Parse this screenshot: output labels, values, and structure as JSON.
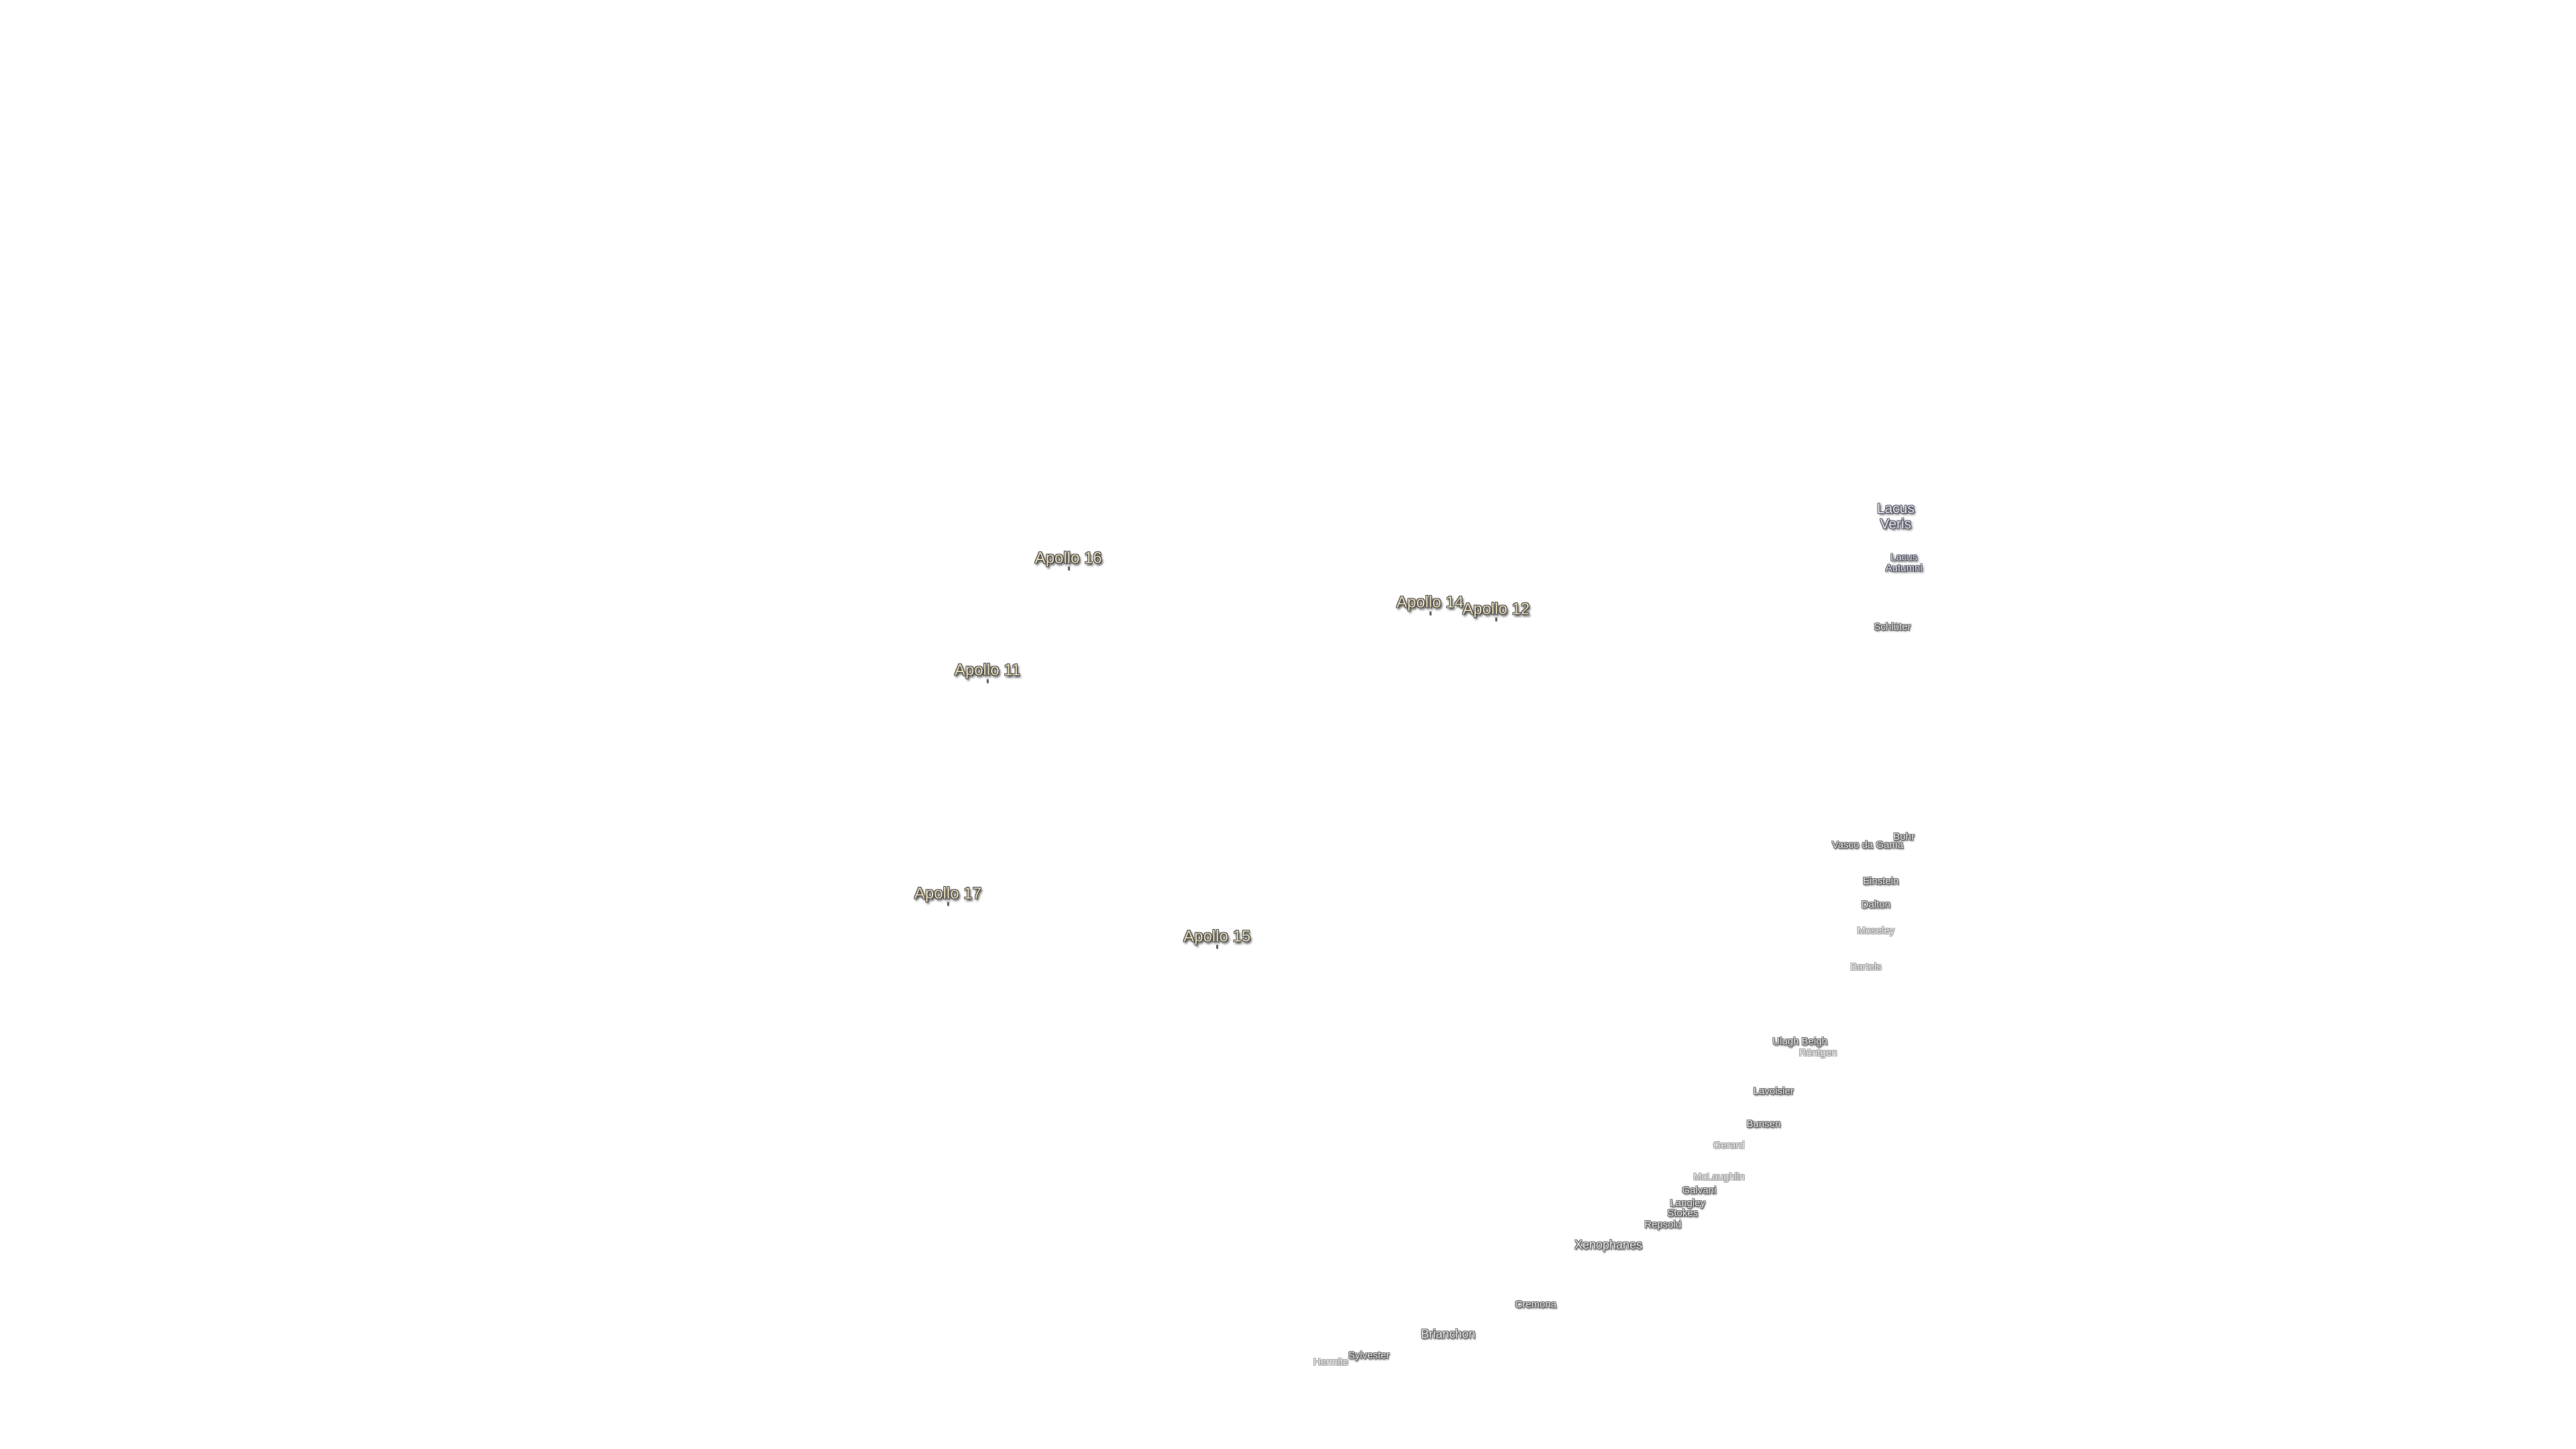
{
  "landing_sites": [
    "Apollo 16",
    "Apollo 14",
    "Apollo 12",
    "Apollo 11",
    "Apollo 17",
    "Apollo 15"
  ],
  "lakes": [
    "Lacus Veris",
    "Lacus Autumni"
  ],
  "craters": [
    "Schlüter",
    "Bohr",
    "Vasco da Gama",
    "Einstein",
    "Dalton",
    "Moseley",
    "Bartels",
    "Ulugh Beigh",
    "Röntgen",
    "Lavoisier",
    "Bunsen",
    "Gerard",
    "McLaughlin",
    "Galvani",
    "Langley",
    "Stokes",
    "Repsold",
    "Xenophanes",
    "Cremona",
    "Brianchon",
    "Sylvester",
    "Hermite"
  ]
}
